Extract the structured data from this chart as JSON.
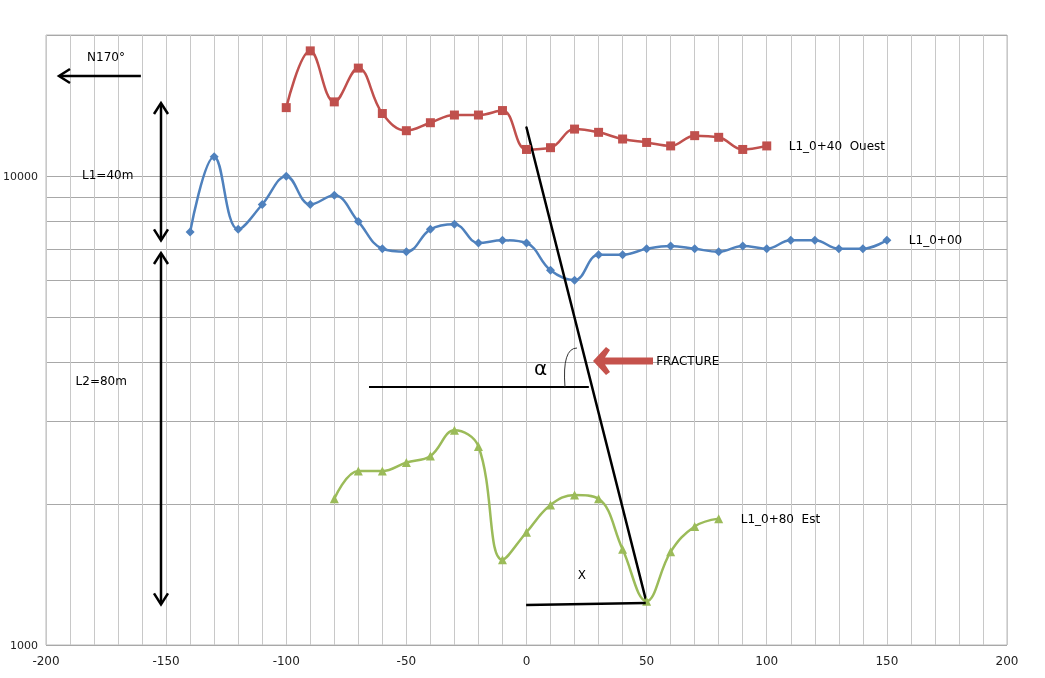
{
  "chart_data": {
    "type": "line",
    "annotations": [
      "N170°",
      "L1=40m",
      "L2=80m",
      {
        "text": "α",
        "x": 25,
        "y": 3550
      },
      "FRACTURE",
      "X"
    ],
    "series": [
      {
        "name": "L1_0+40  Ouest",
        "color": "#c0504d",
        "marker": "square",
        "x": [
          -100,
          -90,
          -80,
          -70,
          -60,
          -50,
          -40,
          -30,
          -20,
          -10,
          0,
          10,
          20,
          30,
          40,
          50,
          60,
          70,
          80,
          90,
          100
        ],
        "values": [
          14000,
          18500,
          14400,
          17000,
          13600,
          12500,
          13000,
          13500,
          13500,
          13800,
          11400,
          11500,
          12600,
          12400,
          12000,
          11800,
          11600,
          12200,
          12100,
          11400,
          11600
        ]
      },
      {
        "name": "L1_0+00",
        "color": "#4f81bd",
        "marker": "diamond",
        "x": [
          -140,
          -130,
          -120,
          -110,
          -100,
          -90,
          -80,
          -70,
          -60,
          -50,
          -40,
          -30,
          -20,
          -10,
          0,
          10,
          20,
          30,
          40,
          50,
          60,
          70,
          80,
          90,
          100,
          110,
          120,
          130,
          140,
          150
        ],
        "values": [
          7600,
          11000,
          7700,
          8700,
          10000,
          8700,
          9100,
          8000,
          7000,
          6900,
          7700,
          7900,
          7200,
          7300,
          7200,
          6300,
          6000,
          6800,
          6800,
          7000,
          7100,
          7000,
          6900,
          7100,
          7000,
          7300,
          7300,
          7000,
          7000,
          7300
        ]
      },
      {
        "type": "line",
        "color": "#000000",
        "marker": "none",
        "x": [
          0,
          50
        ],
        "values": [
          12700,
          1230
        ]
      },
      {
        "name": "L1_0+80  Est",
        "color": "#9bbb59",
        "marker": "triangle",
        "x": [
          -80,
          -70,
          -60,
          -50,
          -40,
          -30,
          -20,
          -10,
          0,
          10,
          20,
          30,
          40,
          50,
          60,
          70,
          80
        ],
        "values": [
          2050,
          2350,
          2350,
          2450,
          2530,
          2870,
          2650,
          1520,
          1740,
          1990,
          2090,
          2050,
          1600,
          1240,
          1580,
          1790,
          1860
        ]
      }
    ],
    "log": "y",
    "xlim": [
      -200,
      200
    ],
    "xticks": [
      -200,
      {
        "value": -190,
        "label": null
      },
      {
        "value": -180,
        "label": null
      },
      {
        "value": -170,
        "label": null
      },
      {
        "value": -160,
        "label": null
      },
      -150,
      {
        "value": -140,
        "label": null
      },
      {
        "value": -130,
        "label": null
      },
      {
        "value": -120,
        "label": null
      },
      {
        "value": -110,
        "label": null
      },
      -100,
      {
        "value": -90,
        "label": null
      },
      {
        "value": -80,
        "label": null
      },
      {
        "value": -70,
        "label": null
      },
      {
        "value": -60,
        "label": null
      },
      -50,
      {
        "value": -40,
        "label": null
      },
      {
        "value": -30,
        "label": null
      },
      {
        "value": -20,
        "label": null
      },
      {
        "value": -10,
        "label": null
      },
      0,
      {
        "value": 10,
        "label": null
      },
      {
        "value": 20,
        "label": null
      },
      {
        "value": 30,
        "label": null
      },
      {
        "value": 40,
        "label": null
      },
      50,
      {
        "value": 60,
        "label": null
      },
      {
        "value": 70,
        "label": null
      },
      {
        "value": 80,
        "label": null
      },
      {
        "value": 90,
        "label": null
      },
      100,
      {
        "value": 110,
        "label": null
      },
      {
        "value": 120,
        "label": null
      },
      {
        "value": 130,
        "label": null
      },
      {
        "value": 140,
        "label": null
      },
      150,
      {
        "value": 160,
        "label": null
      },
      {
        "value": 170,
        "label": null
      },
      {
        "value": 180,
        "label": null
      },
      {
        "value": 190,
        "label": null
      },
      200
    ],
    "ylim": [
      1000,
      20000
    ],
    "yticks": [
      1000,
      {
        "value": 2000,
        "label": null
      },
      {
        "value": 3000,
        "label": null
      },
      {
        "value": 4000,
        "label": null
      },
      {
        "value": 5000,
        "label": null
      },
      {
        "value": 6000,
        "label": null
      },
      {
        "value": 7000,
        "label": null
      },
      {
        "value": 8000,
        "label": null
      },
      {
        "value": 9000,
        "label": null
      },
      10000,
      {
        "value": 20000,
        "label": null
      }
    ],
    "grid": true,
    "legend": false,
    "line_style": "solid"
  }
}
